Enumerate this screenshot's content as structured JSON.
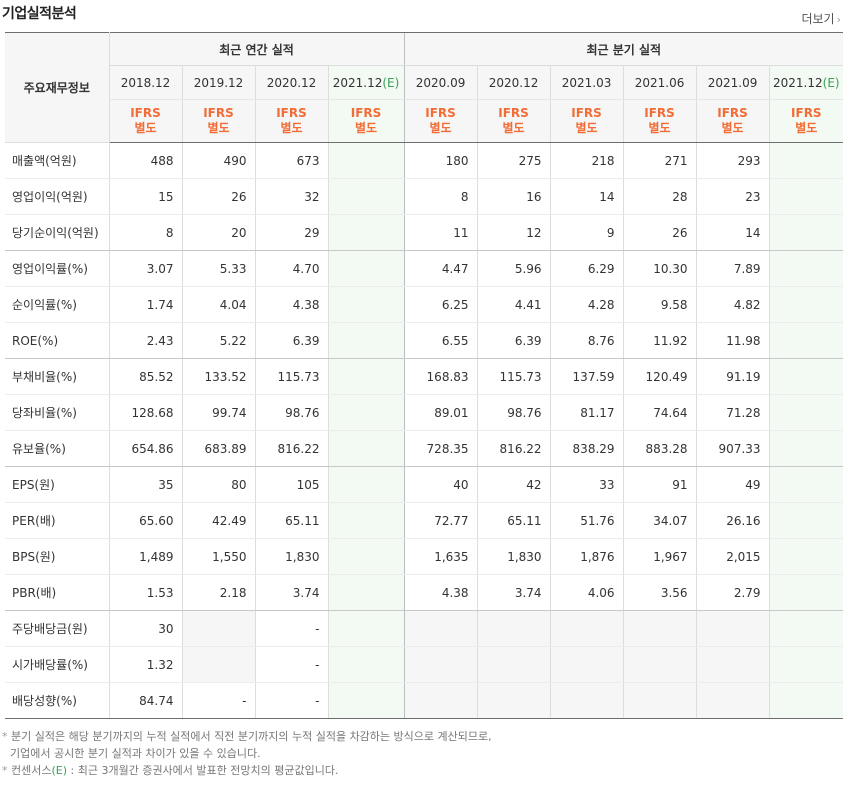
{
  "header": {
    "title": "기업실적분석",
    "more_label": "더보기",
    "more_icon": "chevron-right-icon"
  },
  "table": {
    "row_header_title": "주요재무정보",
    "annual_group_label": "최근 연간 실적",
    "quarterly_group_label": "최근 분기 실적",
    "estimate_marker": "(E)",
    "estimate_color": "#3aa157",
    "ifrs_line1": "IFRS",
    "ifrs_line2": "별도",
    "ifrs_color": "#f26c36",
    "annual_periods": [
      "2018.12",
      "2019.12",
      "2020.12",
      "2021.12"
    ],
    "quarterly_periods": [
      "2020.09",
      "2020.12",
      "2021.03",
      "2021.06",
      "2021.09",
      "2021.12"
    ],
    "rows": [
      {
        "label": "매출액(억원)",
        "annual": [
          "488",
          "490",
          "673",
          ""
        ],
        "quarterly": [
          "180",
          "275",
          "218",
          "271",
          "293",
          ""
        ]
      },
      {
        "label": "영업이익(억원)",
        "annual": [
          "15",
          "26",
          "32",
          ""
        ],
        "quarterly": [
          "8",
          "16",
          "14",
          "28",
          "23",
          ""
        ]
      },
      {
        "label": "당기순이익(억원)",
        "annual": [
          "8",
          "20",
          "29",
          ""
        ],
        "quarterly": [
          "11",
          "12",
          "9",
          "26",
          "14",
          ""
        ]
      },
      {
        "label": "영업이익률(%)",
        "annual": [
          "3.07",
          "5.33",
          "4.70",
          ""
        ],
        "quarterly": [
          "4.47",
          "5.96",
          "6.29",
          "10.30",
          "7.89",
          ""
        ]
      },
      {
        "label": "순이익률(%)",
        "annual": [
          "1.74",
          "4.04",
          "4.38",
          ""
        ],
        "quarterly": [
          "6.25",
          "4.41",
          "4.28",
          "9.58",
          "4.82",
          ""
        ]
      },
      {
        "label": "ROE(%)",
        "annual": [
          "2.43",
          "5.22",
          "6.39",
          ""
        ],
        "quarterly": [
          "6.55",
          "6.39",
          "8.76",
          "11.92",
          "11.98",
          ""
        ]
      },
      {
        "label": "부채비율(%)",
        "annual": [
          "85.52",
          "133.52",
          "115.73",
          ""
        ],
        "quarterly": [
          "168.83",
          "115.73",
          "137.59",
          "120.49",
          "91.19",
          ""
        ]
      },
      {
        "label": "당좌비율(%)",
        "annual": [
          "128.68",
          "99.74",
          "98.76",
          ""
        ],
        "quarterly": [
          "89.01",
          "98.76",
          "81.17",
          "74.64",
          "71.28",
          ""
        ]
      },
      {
        "label": "유보율(%)",
        "annual": [
          "654.86",
          "683.89",
          "816.22",
          ""
        ],
        "quarterly": [
          "728.35",
          "816.22",
          "838.29",
          "883.28",
          "907.33",
          ""
        ]
      },
      {
        "label": "EPS(원)",
        "annual": [
          "35",
          "80",
          "105",
          ""
        ],
        "quarterly": [
          "40",
          "42",
          "33",
          "91",
          "49",
          ""
        ]
      },
      {
        "label": "PER(배)",
        "annual": [
          "65.60",
          "42.49",
          "65.11",
          ""
        ],
        "quarterly": [
          "72.77",
          "65.11",
          "51.76",
          "34.07",
          "26.16",
          ""
        ]
      },
      {
        "label": "BPS(원)",
        "annual": [
          "1,489",
          "1,550",
          "1,830",
          ""
        ],
        "quarterly": [
          "1,635",
          "1,830",
          "1,876",
          "1,967",
          "2,015",
          ""
        ]
      },
      {
        "label": "PBR(배)",
        "annual": [
          "1.53",
          "2.18",
          "3.74",
          ""
        ],
        "quarterly": [
          "4.38",
          "3.74",
          "4.06",
          "3.56",
          "2.79",
          ""
        ]
      },
      {
        "label": "주당배당금(원)",
        "annual": [
          "30",
          "",
          "-",
          ""
        ],
        "quarterly": [
          "",
          "",
          "",
          "",
          "",
          ""
        ]
      },
      {
        "label": "시가배당률(%)",
        "annual": [
          "1.32",
          "",
          "-",
          ""
        ],
        "quarterly": [
          "",
          "",
          "",
          "",
          "",
          ""
        ]
      },
      {
        "label": "배당성향(%)",
        "annual": [
          "84.74",
          "-",
          "-",
          ""
        ],
        "quarterly": [
          "",
          "",
          "",
          "",
          "",
          ""
        ]
      }
    ]
  },
  "notes": {
    "bullet": "*",
    "line1": "분기 실적은 해당 분기까지의 누적 실적에서 직전 분기까지의 누적 실적을 차감하는 방식으로 계산되므로,",
    "line2": "기업에서 공시한 분기 실적과 차이가 있을 수 있습니다.",
    "line3_prefix": "컨센서스",
    "line3_marker": "(E)",
    "line3_suffix": " : 최근 3개월간 증권사에서 발표한 전망치의 평균값입니다."
  }
}
